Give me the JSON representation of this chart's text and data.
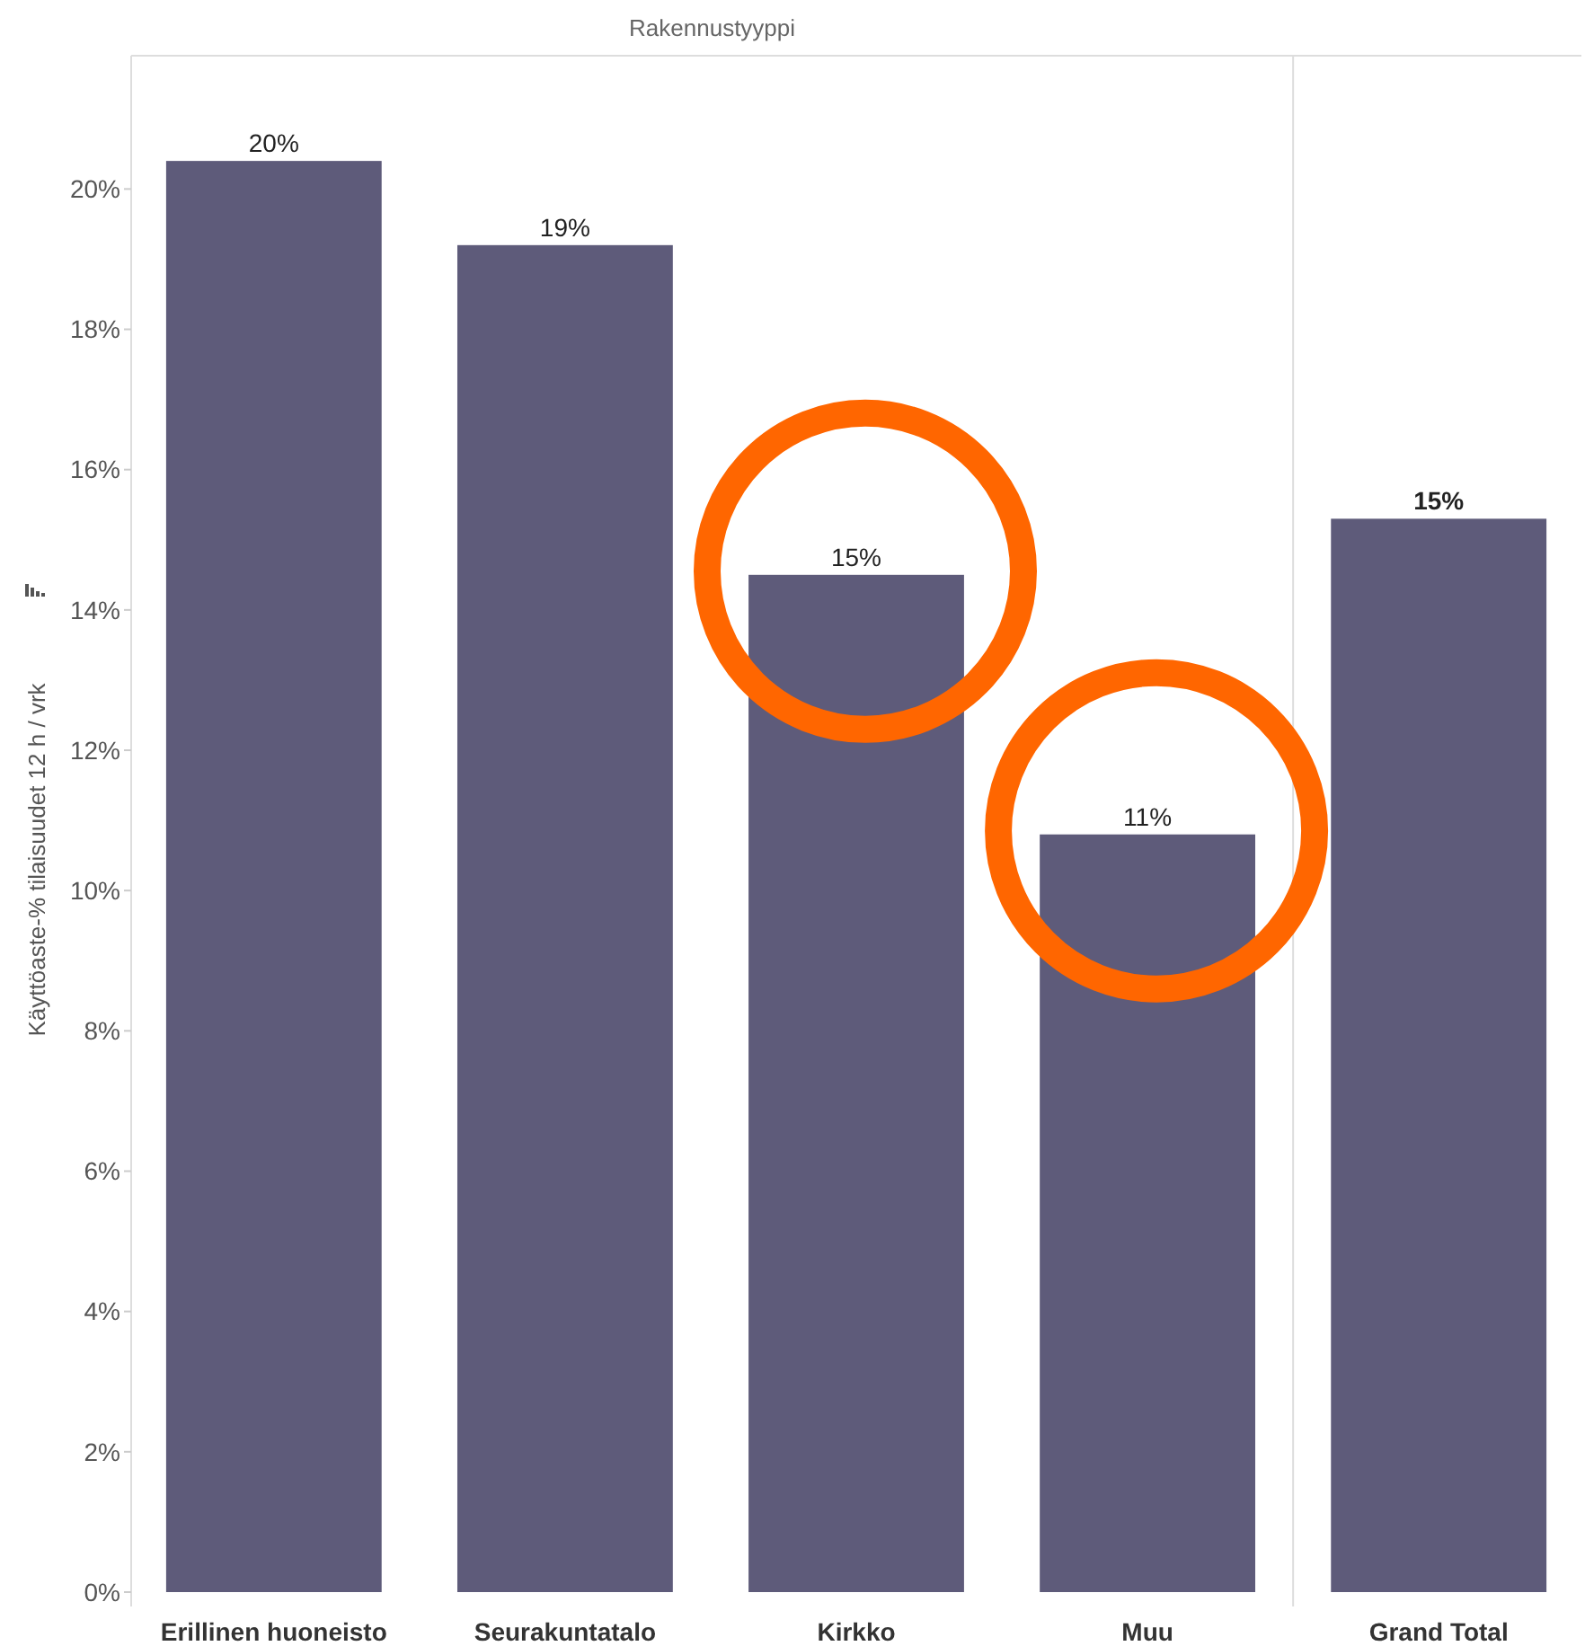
{
  "chart_data": {
    "type": "bar",
    "xlabel": "Rakennustyyppi",
    "ylabel": "Käyttöaste-% tilaisuudet 12 h / vrk",
    "categories": [
      "Erillinen huoneisto",
      "Seurakuntatalo",
      "Kirkko",
      "Muu",
      "Grand Total"
    ],
    "values": [
      20.4,
      19.2,
      14.5,
      10.8,
      15.3
    ],
    "value_labels": [
      "20%",
      "19%",
      "15%",
      "11%",
      "15%"
    ],
    "color": "#5e5b7a",
    "ylim": [
      0,
      21.9
    ],
    "yticks": [
      {
        "value": 0,
        "label": "0%"
      },
      {
        "value": 2,
        "label": "2%"
      },
      {
        "value": 4,
        "label": "4%"
      },
      {
        "value": 6,
        "label": "6%"
      },
      {
        "value": 8,
        "label": "8%"
      },
      {
        "value": 10,
        "label": "10%"
      },
      {
        "value": 12,
        "label": "12%"
      },
      {
        "value": 14,
        "label": "14%"
      },
      {
        "value": 16,
        "label": "16%"
      },
      {
        "value": 18,
        "label": "18%"
      },
      {
        "value": 20,
        "label": "20%"
      }
    ],
    "grid": false
  }
}
